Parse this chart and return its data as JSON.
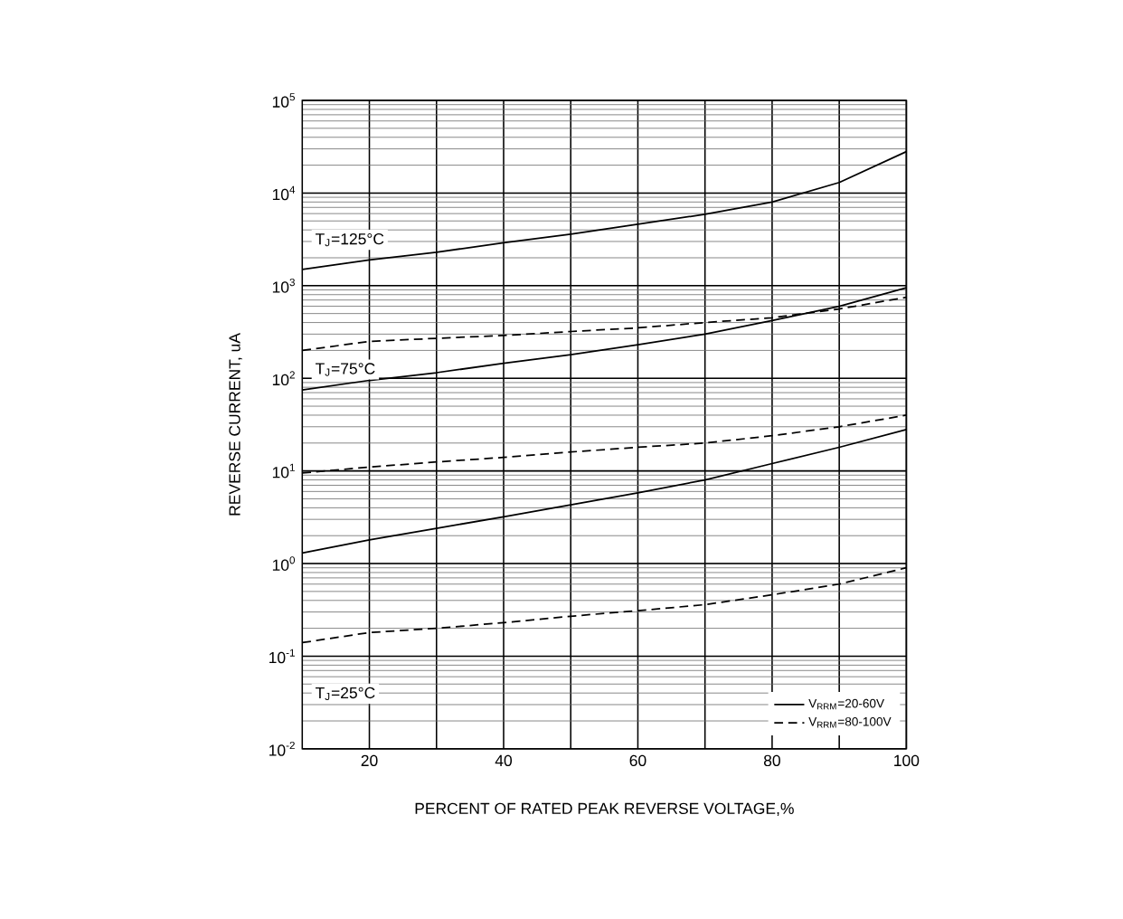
{
  "chart_data": {
    "type": "line",
    "xlabel": "PERCENT OF RATED PEAK REVERSE VOLTAGE,%",
    "ylabel": "REVERSE CURRENT, uA",
    "log": "y",
    "grid": true,
    "legend": "bottom right",
    "marker": "none",
    "xlim": [
      10,
      100
    ],
    "xticks": [
      20,
      {
        "value": 30,
        "label": null
      },
      40,
      {
        "value": 50,
        "label": null
      },
      60,
      {
        "value": 70,
        "label": null
      },
      80,
      {
        "value": 90,
        "label": null
      },
      100
    ],
    "ylim": [
      0.01,
      100000
    ],
    "yticks": [
      {
        "value": 0.01,
        "label": "10$^{-2}$"
      },
      {
        "value": 0.1,
        "label": "10$^{-1}$"
      },
      {
        "value": 1,
        "label": "10$^{0}$"
      },
      {
        "value": 10,
        "label": "10$^{1}$"
      },
      {
        "value": 100,
        "label": "10$^{2}$"
      },
      {
        "value": 1000,
        "label": "10$^{3}$"
      },
      {
        "value": 10000,
        "label": "10$^{4}$"
      },
      {
        "value": 100000,
        "label": "10$^{5}$"
      }
    ],
    "x": [
      10,
      20,
      30,
      40,
      50,
      60,
      70,
      80,
      90,
      100
    ],
    "series": [
      {
        "name": "V$_{RRM}$=20-60V",
        "color": "#000000",
        "line_style": "solid",
        "values": [
          1500,
          1900,
          2300,
          2900,
          3600,
          4600,
          5900,
          8000,
          13000,
          28000
        ]
      },
      {
        "name": "V$_{RRM}$=80-100V",
        "color": "#000000",
        "line_style": "dashed",
        "values": [
          200,
          250,
          270,
          290,
          320,
          350,
          400,
          450,
          560,
          750
        ]
      },
      {
        "color": "#000000",
        "line_style": "solid",
        "values": [
          75,
          95,
          115,
          145,
          180,
          230,
          300,
          420,
          600,
          950
        ]
      },
      {
        "color": "#000000",
        "line_style": "dashed",
        "values": [
          9.5,
          11,
          12.5,
          14,
          16,
          18,
          20,
          24,
          30,
          40
        ]
      },
      {
        "color": "#000000",
        "line_style": "solid",
        "values": [
          1.3,
          1.8,
          2.4,
          3.2,
          4.3,
          5.8,
          8,
          12,
          18,
          28
        ]
      },
      {
        "color": "#000000",
        "line_style": "dashed",
        "values": [
          0.14,
          0.18,
          0.2,
          0.23,
          0.27,
          0.31,
          0.36,
          0.46,
          0.6,
          0.9
        ]
      }
    ],
    "annotations": [
      "T$_{J}$=125°C",
      "T$_{J}$=75°C",
      "T$_{J}$=25°C"
    ]
  }
}
